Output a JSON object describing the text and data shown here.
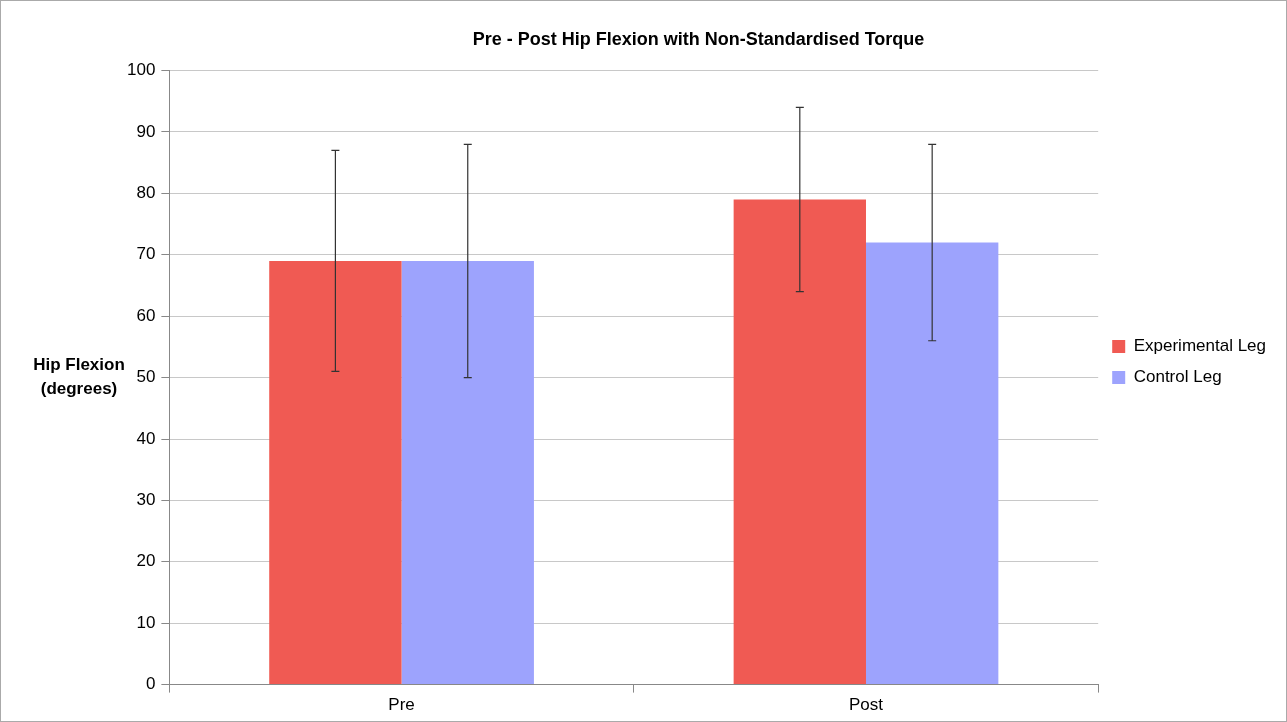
{
  "chart_data": {
    "type": "bar",
    "title": "Pre - Post Hip Flexion with Non-Standardised Torque",
    "ylabel": "Hip Flexion\n(degrees)",
    "categories": [
      "Pre",
      "Post"
    ],
    "series": [
      {
        "name": "Experimental Leg",
        "color": "#f05a53",
        "values": [
          69,
          79
        ],
        "errors": [
          18,
          15
        ]
      },
      {
        "name": "Control Leg",
        "color": "#9da3fd",
        "values": [
          69,
          72
        ],
        "errors": [
          19,
          16
        ]
      }
    ],
    "ylim": [
      0,
      100
    ],
    "yticks": [
      0,
      10,
      20,
      30,
      40,
      50,
      60,
      70,
      80,
      90,
      100
    ],
    "grid": "y",
    "legend": "right"
  }
}
